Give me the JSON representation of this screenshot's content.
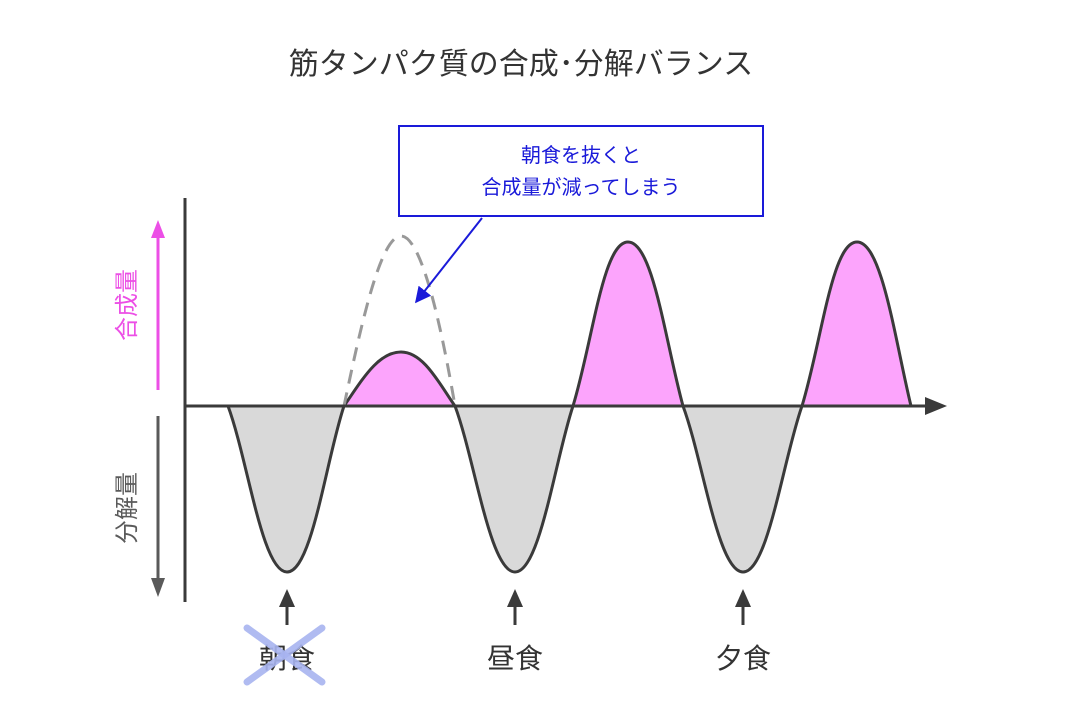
{
  "title": "筋タンパク質の合成･分解バランス",
  "annotation": {
    "line1": "朝食を抜くと",
    "line2": "合成量が減ってしまう"
  },
  "y_axis": {
    "up_label": "合成量",
    "down_label": "分解量"
  },
  "meals": {
    "breakfast": "朝食",
    "lunch": "昼食",
    "dinner": "夕食"
  },
  "breakfast_skipped": true,
  "colors": {
    "synthesis": "#fca4fc",
    "synthesis_arrow": "#ec4fe6",
    "breakdown": "#d9d9d9",
    "outline": "#3a3a3a",
    "annotation": "#1a1ad9",
    "cross": "#a8b4f0",
    "dashed_line": "#999999"
  }
}
